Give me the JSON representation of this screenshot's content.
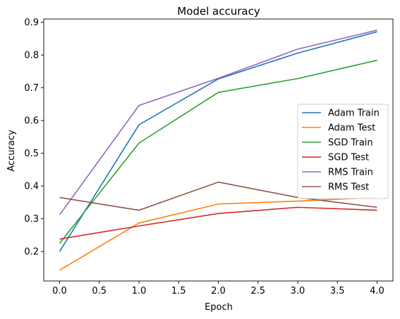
{
  "chart_data": {
    "type": "line",
    "title": "Model accuracy",
    "xlabel": "Epoch",
    "ylabel": "Accuracy",
    "x": [
      0,
      1,
      2,
      3,
      4
    ],
    "xlim": [
      -0.2,
      4.2
    ],
    "ylim": [
      0.11,
      0.91
    ],
    "xticks": [
      "0.0",
      "0.5",
      "1.0",
      "1.5",
      "2.0",
      "2.5",
      "3.0",
      "3.5",
      "4.0"
    ],
    "yticks": [
      "0.2",
      "0.3",
      "0.4",
      "0.5",
      "0.6",
      "0.7",
      "0.8",
      "0.9"
    ],
    "grid": false,
    "legend_position": "center-right",
    "series": [
      {
        "name": "Adam Train",
        "color": "#1f77b4",
        "values": [
          0.2,
          0.587,
          0.727,
          0.806,
          0.871
        ]
      },
      {
        "name": "Adam Test",
        "color": "#ff7f0e",
        "values": [
          0.143,
          0.287,
          0.345,
          0.354,
          0.365
        ]
      },
      {
        "name": "SGD Train",
        "color": "#2ca02c",
        "values": [
          0.225,
          0.531,
          0.686,
          0.728,
          0.784
        ]
      },
      {
        "name": "SGD Test",
        "color": "#d62728",
        "values": [
          0.238,
          0.278,
          0.316,
          0.335,
          0.326
        ]
      },
      {
        "name": "RMS Train",
        "color": "#9467bd",
        "values": [
          0.312,
          0.646,
          0.729,
          0.818,
          0.876
        ]
      },
      {
        "name": "RMS Test",
        "color": "#8c564b",
        "values": [
          0.365,
          0.326,
          0.412,
          0.365,
          0.335
        ]
      }
    ]
  }
}
